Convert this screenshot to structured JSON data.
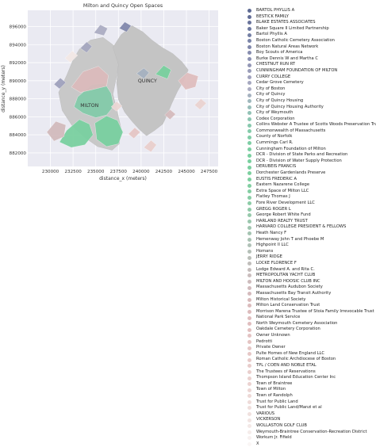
{
  "chart_data": {
    "type": "map",
    "title": "Milton and Quincy Open Spaces",
    "xlabel": "distance_x (meters)",
    "ylabel": "distance_y (meters)",
    "xlim": [
      227500,
      248500
    ],
    "ylim": [
      880500,
      897800
    ],
    "xticks": [
      230000,
      232500,
      235000,
      237500,
      240000,
      242500,
      245000,
      247500
    ],
    "yticks": [
      882000,
      884000,
      886000,
      888000,
      890000,
      892000,
      894000,
      896000
    ],
    "grid": true,
    "legend_position": "right",
    "annotations": [
      {
        "text": "MILTON",
        "x": 234300,
        "y": 887100
      },
      {
        "text": "QUINCY",
        "x": 240700,
        "y": 889800
      }
    ],
    "base_regions": [
      {
        "name": "Milton",
        "color": "#c8c8c8",
        "points": [
          [
            230900,
            888700
          ],
          [
            231800,
            890600
          ],
          [
            232500,
            892300
          ],
          [
            233200,
            893500
          ],
          [
            234400,
            894500
          ],
          [
            235800,
            894800
          ],
          [
            237000,
            893900
          ],
          [
            237600,
            892300
          ],
          [
            237300,
            890500
          ],
          [
            236900,
            888500
          ],
          [
            237400,
            886500
          ],
          [
            237800,
            884700
          ],
          [
            237600,
            883000
          ],
          [
            236800,
            882300
          ],
          [
            235200,
            882700
          ],
          [
            233800,
            883700
          ],
          [
            232400,
            885000
          ],
          [
            231300,
            886700
          ]
        ]
      },
      {
        "name": "Quincy",
        "color": "#c4c4c4",
        "points": [
          [
            236900,
            893700
          ],
          [
            237800,
            895100
          ],
          [
            239000,
            896100
          ],
          [
            240200,
            895400
          ],
          [
            241200,
            894500
          ],
          [
            242300,
            893700
          ],
          [
            243500,
            893000
          ],
          [
            244500,
            892100
          ],
          [
            245200,
            891200
          ],
          [
            244700,
            890000
          ],
          [
            244000,
            888800
          ],
          [
            243400,
            887500
          ],
          [
            242900,
            886300
          ],
          [
            242400,
            885200
          ],
          [
            241500,
            884500
          ],
          [
            240600,
            883900
          ],
          [
            239800,
            884600
          ],
          [
            239000,
            885500
          ],
          [
            238200,
            886500
          ],
          [
            237500,
            887900
          ],
          [
            237300,
            889800
          ],
          [
            237500,
            891800
          ]
        ]
      }
    ],
    "categories": [
      "BARTOL PHYLLIS A",
      "BESTICK FAMILY",
      "BLAKE ESTATES ASSOCIATES",
      "Baker Square II Limited Partnership",
      "Bartol Phyllis A",
      "Boston Catholic Cemetery Association",
      "Boston Natural Areas Network",
      "Boy Scouts of America",
      "Burke Dennis W and Martha C",
      "CHESTNUT RUN RT",
      "CUNNINGHAM FOUNDATION OF MILTON",
      "CURRY COLLEGE",
      "Cedar Grove Cemetery",
      "City of Boston",
      "City of Quincy",
      "City of Quincy Housing",
      "City of Quincy Housing Authority",
      "City of Weymouth",
      "Codex Corporation",
      "Collins Webster A Trustee of Scotts Woods Preservation Trust",
      "Commonwealth of Massachusetts",
      "County of Norfolk",
      "Cummings Carl R.",
      "Cunningham Foundation of Milton",
      "DCR - Division of State Parks and Recreation",
      "DCR - Division of Water Supply Protection",
      "DERUBEIS FRANCIS",
      "Dorchester Gardenlands Preserve",
      "EUSTIS FREDERIC A",
      "Eastern Nazarene College",
      "Extra Space of Milton LLC",
      "Flatley Thomas J",
      "Fore River Development LLC",
      "GREGG ROGER L",
      "George Robert White Fund",
      "HARLAND REALTY TRUST",
      "HARVARD COLLEGE PRESIDENT & FELLOWS",
      "Heath Nancy F",
      "Hemenway John T and Phoebe M",
      "Highpoint II LLC",
      "Homans",
      "JERRY RIDGE",
      "LOCKE FLORENCE F",
      "Lodge Edward A. and Rita C.",
      "METROPOLITAN YACHT CLUB",
      "MILTON AND HOOSIC CLUB INC",
      "Massachusetts Audubon Society",
      "Massachusetts Bay Transit Authority",
      "Milton Historical Society",
      "Milton Land Conservation Trust",
      "Morrison Marena Trustee of Stoia Family Irrevocable Trust",
      "National Park Service",
      "North Weymouth Cemetery Association",
      "Oakdale Cemetery Corporation",
      "Owner Unknown",
      "Pedrotti",
      "Private Owner",
      "Pulte Homes of New England LLC",
      "Roman Catholic Archdiocese of Boston",
      "TPL / COEN AND NOBLE ETAL",
      "The Trustees of Reservations",
      "Thompson Island Education Center Inc",
      "Town of Braintree",
      "Town of Milton",
      "Town of Randolph",
      "Trust for Public Land",
      "Trust for Public Land/Manzi et al",
      "VARIOUS",
      "VICKERSON",
      "WOLLASTON GOLF CLUB",
      "Weymouth-Braintree Conservation-Recreation District",
      "Workum Jr. Fifield",
      "X"
    ],
    "colors": [
      "#5e6a93",
      "#636e97",
      "#69739b",
      "#6e79a0",
      "#747fa4",
      "#7b85a9",
      "#8188ac",
      "#878daf",
      "#8d92b3",
      "#9397b6",
      "#9a9db9",
      "#a0a2bd",
      "#a6a8c0",
      "#acadc3",
      "#a6b2c0",
      "#9fb8bd",
      "#98bdb9",
      "#92c2b6",
      "#8dc6b2",
      "#88c9ae",
      "#84cbaa",
      "#81cda7",
      "#7ecea4",
      "#7ccfa2",
      "#7ad0a0",
      "#79d09f",
      "#7ad09f",
      "#7cd09f",
      "#7ed0a0",
      "#81cfa1",
      "#84cea3",
      "#88cda5",
      "#8ccca7",
      "#91caa9",
      "#96c9ab",
      "#9bc7ae",
      "#a0c6b0",
      "#a5c4b2",
      "#aac3b4",
      "#b0c1b7",
      "#b5c0b8",
      "#bbbfb9",
      "#c0bebb",
      "#c5bdbc",
      "#cabdbd",
      "#cebcbd",
      "#d2bbbd",
      "#d5bbbd",
      "#d8bbbc",
      "#dbbbbc",
      "#ddbcbd",
      "#dfbdbe",
      "#e0bebf",
      "#e2c0c0",
      "#e3c2c2",
      "#e4c4c3",
      "#e5c6c5",
      "#e6c8c7",
      "#e7cac9",
      "#e8cccb",
      "#e9cfcd",
      "#ead1cf",
      "#ebd3d1",
      "#ecd6d4",
      "#edd8d6",
      "#eedbd9",
      "#efdedc",
      "#f0e1df",
      "#f1e4e2",
      "#f3e8e6",
      "#f5ecea",
      "#f7f0ef",
      "#faf6f5"
    ],
    "parcels": [
      {
        "category": "Commonwealth of Massachusetts",
        "points": [
          [
            233000,
            888200
          ],
          [
            234600,
            889600
          ],
          [
            236000,
            889700
          ],
          [
            236700,
            888600
          ],
          [
            237000,
            887200
          ],
          [
            236200,
            886200
          ],
          [
            235000,
            885900
          ],
          [
            233600,
            886400
          ],
          [
            232600,
            887100
          ]
        ]
      },
      {
        "category": "DCR - Division of State Parks and Recreation",
        "points": [
          [
            231800,
            884500
          ],
          [
            233200,
            885700
          ],
          [
            234300,
            885200
          ],
          [
            234700,
            884000
          ],
          [
            233800,
            882900
          ],
          [
            232300,
            882600
          ],
          [
            231000,
            883200
          ]
        ]
      },
      {
        "category": "DCR - Division of State Parks and Recreation",
        "points": [
          [
            234900,
            885300
          ],
          [
            236200,
            886100
          ],
          [
            237400,
            885600
          ],
          [
            238000,
            884300
          ],
          [
            237500,
            883000
          ],
          [
            236200,
            882700
          ],
          [
            235100,
            883500
          ]
        ]
      },
      {
        "category": "Milton Land Conservation Trust",
        "points": [
          [
            232300,
            889300
          ],
          [
            233600,
            891000
          ],
          [
            235300,
            891600
          ],
          [
            236400,
            890600
          ],
          [
            236200,
            889400
          ],
          [
            234600,
            889000
          ],
          [
            233300,
            888700
          ]
        ]
      },
      {
        "category": "Massachusetts Audubon Society",
        "points": [
          [
            229600,
            884300
          ],
          [
            230600,
            885500
          ],
          [
            231700,
            885100
          ],
          [
            231500,
            883800
          ],
          [
            230400,
            883300
          ]
        ]
      },
      {
        "category": "National Park Service",
        "points": [
          [
            244100,
            890000
          ],
          [
            245100,
            890900
          ],
          [
            246300,
            890500
          ],
          [
            246000,
            889300
          ],
          [
            244900,
            889000
          ]
        ]
      },
      {
        "category": "DCR - Division of Water Supply Protection",
        "points": [
          [
            241600,
            890700
          ],
          [
            242500,
            891700
          ],
          [
            243300,
            891200
          ],
          [
            242900,
            890200
          ]
        ]
      },
      {
        "category": "City of Quincy",
        "points": [
          [
            239500,
            890800
          ],
          [
            240300,
            891400
          ],
          [
            240900,
            890900
          ],
          [
            240300,
            890200
          ]
        ]
      },
      {
        "category": "City of Boston",
        "points": [
          [
            234800,
            895300
          ],
          [
            235500,
            896200
          ],
          [
            236300,
            895800
          ],
          [
            235900,
            895000
          ]
        ]
      },
      {
        "category": "Boston Natural Areas Network",
        "points": [
          [
            237600,
            895800
          ],
          [
            238200,
            896500
          ],
          [
            238900,
            896100
          ],
          [
            238400,
            895400
          ]
        ]
      },
      {
        "category": "Cedar Grove Cemetery",
        "points": [
          [
            233300,
            893600
          ],
          [
            234000,
            894300
          ],
          [
            234600,
            893800
          ],
          [
            234000,
            893100
          ]
        ]
      },
      {
        "category": "The Trustees of Reservations",
        "points": [
          [
            240300,
            882600
          ],
          [
            241100,
            883400
          ],
          [
            241700,
            882900
          ],
          [
            241100,
            882100
          ]
        ]
      },
      {
        "category": "Town of Braintree",
        "points": [
          [
            245900,
            887300
          ],
          [
            246600,
            888000
          ],
          [
            247200,
            887500
          ],
          [
            246500,
            886800
          ]
        ]
      },
      {
        "category": "CURRY COLLEGE",
        "points": [
          [
            230400,
            889600
          ],
          [
            231100,
            890300
          ],
          [
            231700,
            889800
          ],
          [
            231000,
            889100
          ]
        ]
      },
      {
        "category": "Town of Milton",
        "points": [
          [
            236700,
            887100
          ],
          [
            237300,
            887700
          ],
          [
            237900,
            887200
          ],
          [
            237300,
            886600
          ]
        ]
      },
      {
        "category": "Private Owner",
        "points": [
          [
            238600,
            884100
          ],
          [
            239300,
            884800
          ],
          [
            239900,
            884300
          ],
          [
            239200,
            883600
          ]
        ]
      },
      {
        "category": "WOLLASTON GOLF CLUB",
        "points": [
          [
            231600,
            892500
          ],
          [
            232400,
            893300
          ],
          [
            233000,
            892800
          ],
          [
            232200,
            892000
          ]
        ]
      },
      {
        "category": "Massachusetts Bay Transit Authority",
        "points": [
          [
            242600,
            886200
          ],
          [
            243200,
            886800
          ],
          [
            243800,
            886300
          ],
          [
            243200,
            885700
          ]
        ]
      }
    ]
  }
}
